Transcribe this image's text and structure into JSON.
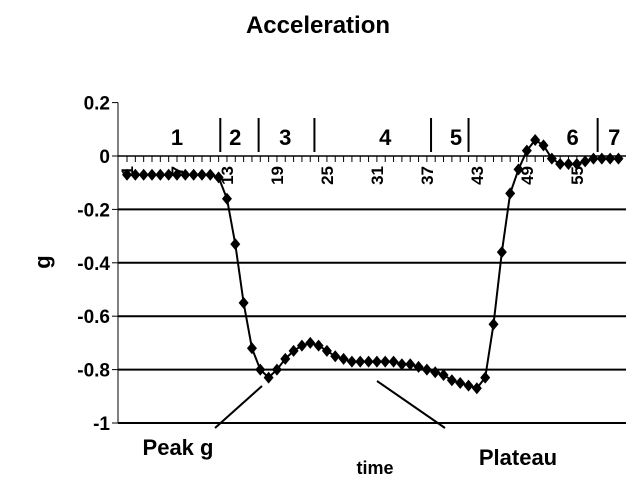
{
  "chart_data": {
    "type": "line",
    "title": "Acceleration",
    "xlabel": "time",
    "ylabel": "g",
    "ylim": [
      -1,
      0.2
    ],
    "yticks": [
      0.2,
      0,
      -0.2,
      -0.4,
      -0.6,
      -0.8,
      -1
    ],
    "ytick_labels": [
      "0.2",
      "0",
      "-0.2",
      "-0.4",
      "-0.6",
      "-0.8",
      "-1"
    ],
    "xticks": [
      1,
      7,
      13,
      19,
      25,
      31,
      37,
      43,
      49,
      55
    ],
    "xtick_labels": [
      "1",
      "7",
      "13",
      "19",
      "25",
      "31",
      "37",
      "43",
      "49",
      "55"
    ],
    "grid": "horizontal",
    "x": [
      1,
      2,
      3,
      4,
      5,
      6,
      7,
      8,
      9,
      10,
      11,
      12,
      13,
      14,
      15,
      16,
      17,
      18,
      19,
      20,
      21,
      22,
      23,
      24,
      25,
      26,
      27,
      28,
      29,
      30,
      31,
      32,
      33,
      34,
      35,
      36,
      37,
      38,
      39,
      40,
      41,
      42,
      43,
      44,
      45,
      46,
      47,
      48,
      49,
      50,
      51,
      52,
      53,
      54,
      55,
      56,
      57,
      58,
      59,
      60
    ],
    "series": [
      {
        "name": "Acceleration",
        "marker": "diamond",
        "values": [
          -0.07,
          -0.07,
          -0.07,
          -0.07,
          -0.07,
          -0.07,
          -0.07,
          -0.07,
          -0.07,
          -0.07,
          -0.07,
          -0.08,
          -0.16,
          -0.33,
          -0.55,
          -0.72,
          -0.8,
          -0.83,
          -0.8,
          -0.76,
          -0.73,
          -0.71,
          -0.7,
          -0.71,
          -0.73,
          -0.75,
          -0.76,
          -0.77,
          -0.77,
          -0.77,
          -0.77,
          -0.77,
          -0.77,
          -0.78,
          -0.78,
          -0.79,
          -0.8,
          -0.81,
          -0.82,
          -0.84,
          -0.85,
          -0.86,
          -0.87,
          -0.83,
          -0.63,
          -0.36,
          -0.14,
          -0.05,
          0.02,
          0.06,
          0.04,
          -0.01,
          -0.03,
          -0.03,
          -0.03,
          -0.02,
          -0.01,
          -0.01,
          -0.01,
          -0.01
        ]
      }
    ],
    "phases": [
      {
        "label": "1",
        "center": 7
      },
      {
        "label": "2",
        "center": 14
      },
      {
        "label": "3",
        "center": 20
      },
      {
        "label": "4",
        "center": 32
      },
      {
        "label": "5",
        "center": 40.5
      },
      {
        "label": "6",
        "center": 54.5
      },
      {
        "label": "7",
        "center": 59.5
      }
    ],
    "phase_boundaries": [
      12.2,
      16.8,
      23.5,
      37.5,
      42
    ],
    "phase_boundary_extra": 57.5,
    "annotations": [
      {
        "text": "Peak g",
        "target_x": 18
      },
      {
        "text": "Plateau",
        "target_x": 32
      }
    ],
    "color": "#000000"
  }
}
